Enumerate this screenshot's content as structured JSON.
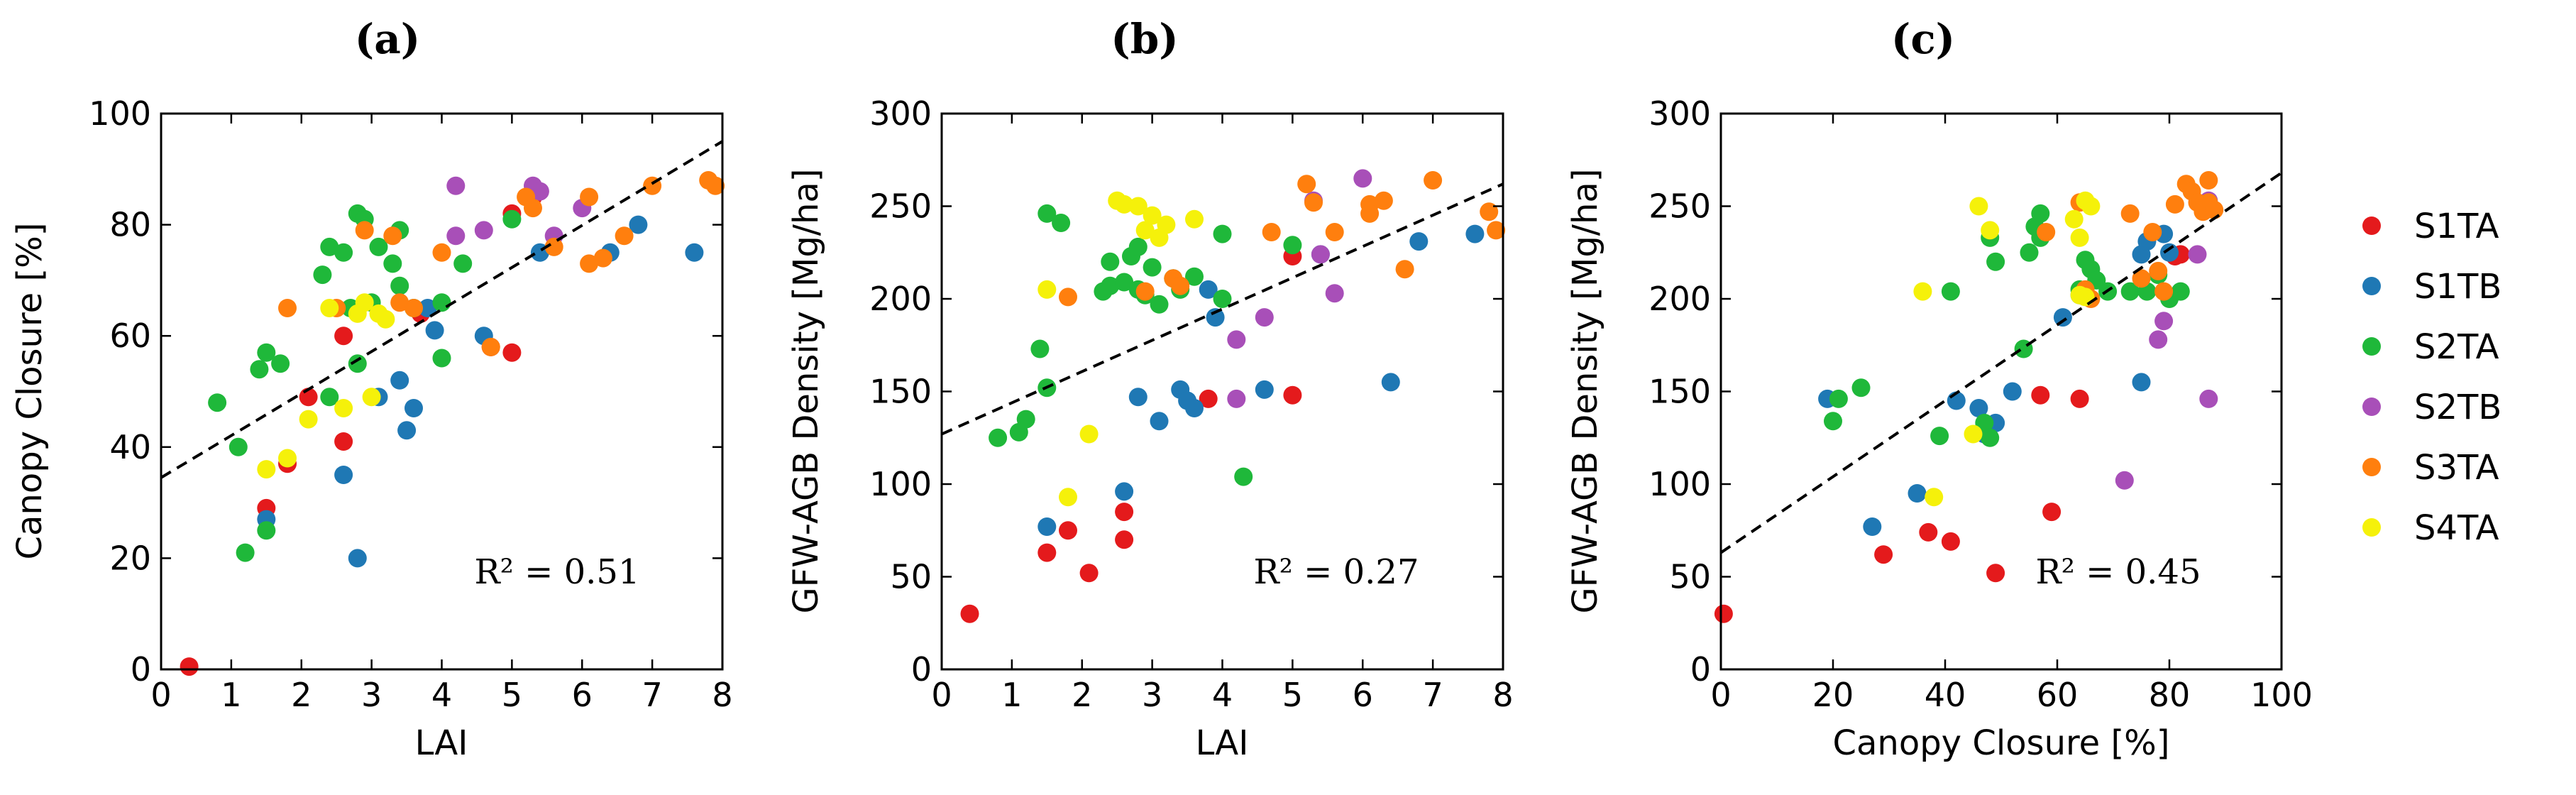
{
  "series_colors": {
    "S1TA": "#e41a1c",
    "S1TB": "#1f78b4",
    "S2TA": "#1fb83a",
    "S2TB": "#a84fb8",
    "S3TA": "#ff7f0e",
    "S4TA": "#f5f10a"
  },
  "legend": {
    "entries": [
      "S1TA",
      "S1TB",
      "S2TA",
      "S2TB",
      "S3TA",
      "S4TA"
    ]
  },
  "chart_data": [
    {
      "type": "scatter",
      "panel": "(a)",
      "xlabel": "LAI",
      "ylabel": "Canopy Closure [%]",
      "xlim": [
        0,
        8
      ],
      "ylim": [
        0,
        100
      ],
      "xticks": [
        0,
        1,
        2,
        3,
        4,
        5,
        6,
        7,
        8
      ],
      "yticks": [
        0,
        20,
        40,
        60,
        80,
        100
      ],
      "r2_label": "R² = 0.51",
      "fit_line": {
        "x": [
          0,
          8
        ],
        "y": [
          34.5,
          95
        ]
      },
      "series": [
        {
          "name": "S1TA",
          "points": [
            [
              0.4,
              0.5
            ],
            [
              1.5,
              29
            ],
            [
              1.8,
              37
            ],
            [
              2.1,
              49
            ],
            [
              2.6,
              60
            ],
            [
              2.6,
              41
            ],
            [
              3.7,
              64
            ],
            [
              4.7,
              58
            ],
            [
              5.0,
              57
            ],
            [
              5.0,
              82
            ],
            [
              5.3,
              85
            ]
          ]
        },
        {
          "name": "S1TB",
          "points": [
            [
              1.5,
              27
            ],
            [
              2.6,
              35
            ],
            [
              2.8,
              20
            ],
            [
              3.1,
              49
            ],
            [
              3.4,
              52
            ],
            [
              3.5,
              43
            ],
            [
              3.6,
              47
            ],
            [
              3.8,
              65
            ],
            [
              3.9,
              61
            ],
            [
              4.6,
              60
            ],
            [
              5.4,
              75
            ],
            [
              6.4,
              75
            ],
            [
              6.8,
              80
            ],
            [
              7.6,
              75
            ]
          ]
        },
        {
          "name": "S2TA",
          "points": [
            [
              0.8,
              48
            ],
            [
              1.1,
              40
            ],
            [
              1.2,
              21
            ],
            [
              1.4,
              54
            ],
            [
              1.5,
              25
            ],
            [
              1.5,
              57
            ],
            [
              1.7,
              55
            ],
            [
              2.3,
              71
            ],
            [
              2.4,
              49
            ],
            [
              2.4,
              76
            ],
            [
              2.6,
              75
            ],
            [
              2.7,
              65
            ],
            [
              2.8,
              55
            ],
            [
              2.8,
              82
            ],
            [
              2.9,
              81
            ],
            [
              3.0,
              66
            ],
            [
              3.1,
              76
            ],
            [
              3.3,
              73
            ],
            [
              3.4,
              79
            ],
            [
              3.4,
              69
            ],
            [
              3.6,
              65
            ],
            [
              4.0,
              56
            ],
            [
              4.0,
              66
            ],
            [
              4.3,
              73
            ],
            [
              5.0,
              81
            ]
          ]
        },
        {
          "name": "S2TB",
          "points": [
            [
              4.2,
              87
            ],
            [
              4.2,
              78
            ],
            [
              4.6,
              79
            ],
            [
              5.3,
              87
            ],
            [
              5.4,
              86
            ],
            [
              5.6,
              78
            ],
            [
              6.0,
              83
            ]
          ]
        },
        {
          "name": "S3TA",
          "points": [
            [
              1.8,
              65
            ],
            [
              2.5,
              65
            ],
            [
              2.9,
              79
            ],
            [
              3.3,
              78
            ],
            [
              3.4,
              66
            ],
            [
              3.6,
              65
            ],
            [
              4.0,
              75
            ],
            [
              4.7,
              58
            ],
            [
              5.2,
              85
            ],
            [
              5.3,
              83
            ],
            [
              5.6,
              76
            ],
            [
              6.1,
              85
            ],
            [
              6.1,
              73
            ],
            [
              6.3,
              74
            ],
            [
              6.6,
              78
            ],
            [
              7.0,
              87
            ],
            [
              7.8,
              88
            ],
            [
              7.9,
              87
            ]
          ]
        },
        {
          "name": "S4TA",
          "points": [
            [
              1.5,
              36
            ],
            [
              1.8,
              38
            ],
            [
              2.1,
              45
            ],
            [
              2.4,
              65
            ],
            [
              2.6,
              47
            ],
            [
              2.8,
              64
            ],
            [
              2.9,
              66
            ],
            [
              3.0,
              49
            ],
            [
              3.1,
              64
            ],
            [
              3.2,
              63
            ]
          ]
        }
      ]
    },
    {
      "type": "scatter",
      "panel": "(b)",
      "xlabel": "LAI",
      "ylabel": "GFW-AGB Density [Mg/ha]",
      "xlim": [
        0,
        8
      ],
      "ylim": [
        0,
        300
      ],
      "xticks": [
        0,
        1,
        2,
        3,
        4,
        5,
        6,
        7,
        8
      ],
      "yticks": [
        0,
        50,
        100,
        150,
        200,
        250,
        300
      ],
      "r2_label": "R² = 0.27",
      "fit_line": {
        "x": [
          0,
          8
        ],
        "y": [
          127,
          262
        ]
      },
      "series": [
        {
          "name": "S1TA",
          "points": [
            [
              0.4,
              30
            ],
            [
              1.5,
              63
            ],
            [
              1.8,
              75
            ],
            [
              2.1,
              52
            ],
            [
              2.6,
              85
            ],
            [
              2.6,
              70
            ],
            [
              3.8,
              146
            ],
            [
              5.0,
              148
            ],
            [
              5.0,
              223
            ]
          ]
        },
        {
          "name": "S1TB",
          "points": [
            [
              1.5,
              77
            ],
            [
              2.6,
              96
            ],
            [
              2.8,
              147
            ],
            [
              3.1,
              134
            ],
            [
              3.4,
              151
            ],
            [
              3.5,
              145
            ],
            [
              3.6,
              141
            ],
            [
              3.8,
              205
            ],
            [
              3.9,
              190
            ],
            [
              4.6,
              151
            ],
            [
              5.4,
              224
            ],
            [
              6.4,
              155
            ],
            [
              6.8,
              231
            ],
            [
              7.6,
              235
            ]
          ]
        },
        {
          "name": "S2TA",
          "points": [
            [
              0.8,
              125
            ],
            [
              1.1,
              128
            ],
            [
              1.2,
              135
            ],
            [
              1.4,
              173
            ],
            [
              1.5,
              152
            ],
            [
              1.5,
              246
            ],
            [
              1.7,
              241
            ],
            [
              2.3,
              204
            ],
            [
              2.4,
              220
            ],
            [
              2.4,
              207
            ],
            [
              2.6,
              209
            ],
            [
              2.7,
              223
            ],
            [
              2.8,
              228
            ],
            [
              2.8,
              205
            ],
            [
              2.9,
              202
            ],
            [
              3.0,
              217
            ],
            [
              3.1,
              197
            ],
            [
              3.3,
              211
            ],
            [
              3.4,
              205
            ],
            [
              3.6,
              212
            ],
            [
              4.0,
              235
            ],
            [
              4.0,
              200
            ],
            [
              4.3,
              104
            ],
            [
              5.0,
              229
            ]
          ]
        },
        {
          "name": "S2TB",
          "points": [
            [
              4.2,
              178
            ],
            [
              4.2,
              146
            ],
            [
              4.6,
              190
            ],
            [
              5.3,
              253
            ],
            [
              5.4,
              224
            ],
            [
              5.6,
              203
            ],
            [
              6.0,
              265
            ]
          ]
        },
        {
          "name": "S3TA",
          "points": [
            [
              1.8,
              201
            ],
            [
              2.9,
              204
            ],
            [
              3.3,
              211
            ],
            [
              3.4,
              207
            ],
            [
              4.7,
              236
            ],
            [
              5.2,
              262
            ],
            [
              5.3,
              252
            ],
            [
              5.6,
              236
            ],
            [
              6.1,
              251
            ],
            [
              6.1,
              246
            ],
            [
              6.3,
              253
            ],
            [
              6.6,
              216
            ],
            [
              7.0,
              264
            ],
            [
              7.8,
              247
            ],
            [
              7.9,
              237
            ]
          ]
        },
        {
          "name": "S4TA",
          "points": [
            [
              1.5,
              205
            ],
            [
              1.8,
              93
            ],
            [
              2.1,
              127
            ],
            [
              2.5,
              253
            ],
            [
              2.6,
              251
            ],
            [
              2.8,
              250
            ],
            [
              2.9,
              237
            ],
            [
              3.0,
              245
            ],
            [
              3.1,
              233
            ],
            [
              3.2,
              240
            ],
            [
              3.6,
              243
            ]
          ]
        }
      ]
    },
    {
      "type": "scatter",
      "panel": "(c)",
      "xlabel": "Canopy Closure [%]",
      "ylabel": "GFW-AGB Density [Mg/ha]",
      "xlim": [
        0,
        100
      ],
      "ylim": [
        0,
        300
      ],
      "xticks": [
        0,
        20,
        40,
        60,
        80,
        100
      ],
      "yticks": [
        0,
        50,
        100,
        150,
        200,
        250,
        300
      ],
      "r2_label": "R² = 0.45",
      "fit_line": {
        "x": [
          0,
          100
        ],
        "y": [
          63,
          268
        ]
      },
      "series": [
        {
          "name": "S1TA",
          "points": [
            [
              0.5,
              30
            ],
            [
              29,
              62
            ],
            [
              37,
              74
            ],
            [
              41,
              69
            ],
            [
              49,
              52
            ],
            [
              57,
              148
            ],
            [
              59,
              85
            ],
            [
              64,
              146
            ],
            [
              81,
              223
            ],
            [
              82,
              224
            ]
          ]
        },
        {
          "name": "S1TB",
          "points": [
            [
              19,
              146
            ],
            [
              27,
              77
            ],
            [
              35,
              95
            ],
            [
              42,
              145
            ],
            [
              46,
              141
            ],
            [
              47,
              127
            ],
            [
              49,
              133
            ],
            [
              52,
              150
            ],
            [
              61,
              190
            ],
            [
              64,
              202
            ],
            [
              75,
              155
            ],
            [
              75,
              224
            ],
            [
              76,
              231
            ],
            [
              79,
              235
            ],
            [
              80,
              225
            ]
          ]
        },
        {
          "name": "S2TA",
          "points": [
            [
              20,
              134
            ],
            [
              21,
              146
            ],
            [
              25,
              152
            ],
            [
              39,
              126
            ],
            [
              41,
              204
            ],
            [
              47,
              133
            ],
            [
              48,
              125
            ],
            [
              48,
              233
            ],
            [
              49,
              220
            ],
            [
              54,
              173
            ],
            [
              55,
              225
            ],
            [
              56,
              239
            ],
            [
              57,
              246
            ],
            [
              57,
              233
            ],
            [
              64,
              205
            ],
            [
              65,
              221
            ],
            [
              66,
              216
            ],
            [
              67,
              210
            ],
            [
              69,
              204
            ],
            [
              73,
              204
            ],
            [
              76,
              204
            ],
            [
              78,
              213
            ],
            [
              80,
              200
            ],
            [
              82,
              204
            ]
          ]
        },
        {
          "name": "S2TB",
          "points": [
            [
              72,
              102
            ],
            [
              78,
              178
            ],
            [
              79,
              188
            ],
            [
              85,
              224
            ],
            [
              87,
              146
            ],
            [
              87,
              253
            ]
          ]
        },
        {
          "name": "S3TA",
          "points": [
            [
              58,
              236
            ],
            [
              64,
              252
            ],
            [
              65,
              205
            ],
            [
              66,
              200
            ],
            [
              73,
              246
            ],
            [
              75,
              211
            ],
            [
              77,
              236
            ],
            [
              78,
              215
            ],
            [
              79,
              204
            ],
            [
              81,
              251
            ],
            [
              83,
              262
            ],
            [
              84,
              258
            ],
            [
              85,
              252
            ],
            [
              86,
              247
            ],
            [
              87,
              264
            ],
            [
              87,
              252
            ],
            [
              88,
              248
            ]
          ]
        },
        {
          "name": "S4TA",
          "points": [
            [
              36,
              204
            ],
            [
              38,
              93
            ],
            [
              45,
              127
            ],
            [
              46,
              250
            ],
            [
              48,
              237
            ],
            [
              63,
              243
            ],
            [
              64,
              233
            ],
            [
              64,
              202
            ],
            [
              65,
              201
            ],
            [
              65,
              253
            ],
            [
              66,
              250
            ]
          ]
        }
      ]
    }
  ]
}
